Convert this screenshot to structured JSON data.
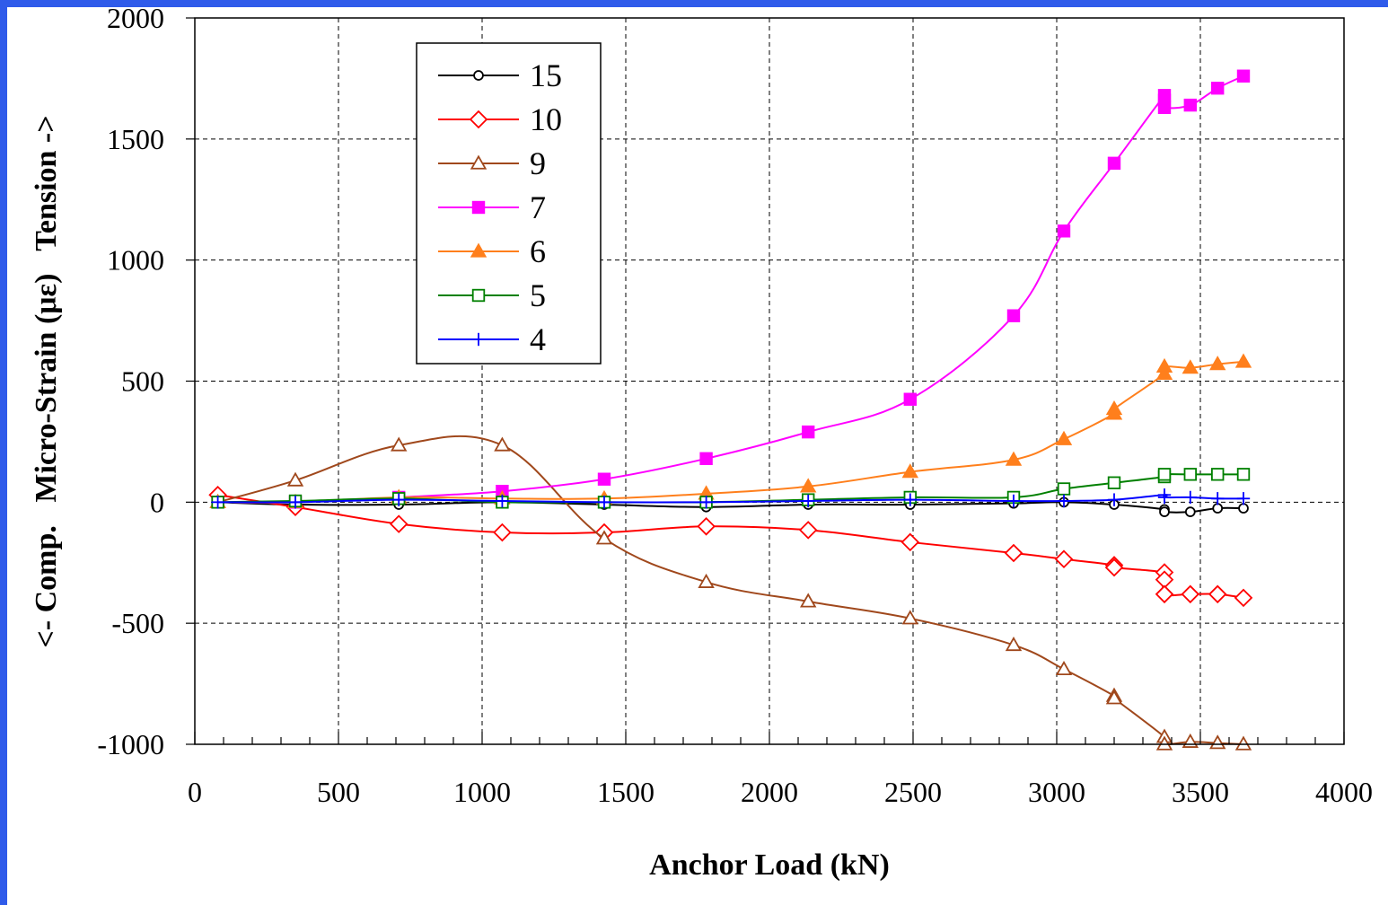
{
  "frame": {
    "color": "#2f5bea"
  },
  "chart_data": {
    "type": "line",
    "xlabel": "Anchor Load (kN)",
    "ylabel": "<- Comp.   Micro-Strain (με)   Tension ->",
    "xlim": [
      0,
      4000
    ],
    "ylim": [
      -1000,
      2000
    ],
    "xticks": [
      0,
      500,
      1000,
      1500,
      2000,
      2500,
      3000,
      3500,
      4000
    ],
    "yticks": [
      -1000,
      -500,
      0,
      500,
      1000,
      1500,
      2000
    ],
    "grid": true,
    "legend_position": "top-left-center",
    "series": [
      {
        "name": "15",
        "color": "#000000",
        "marker": "circle-open",
        "x": [
          80,
          350,
          710,
          1070,
          1425,
          1780,
          2135,
          2490,
          2850,
          3025,
          3200,
          3375,
          3375,
          3465,
          3560,
          3650
        ],
        "y": [
          0,
          -10,
          -10,
          0,
          -10,
          -20,
          -10,
          -10,
          -5,
          0,
          -10,
          -30,
          -40,
          -40,
          -25,
          -25
        ]
      },
      {
        "name": "10",
        "color": "#ff0000",
        "marker": "diamond-open",
        "x": [
          80,
          350,
          710,
          1070,
          1425,
          1780,
          2135,
          2490,
          2850,
          3025,
          3200,
          3200,
          3375,
          3375,
          3375,
          3465,
          3560,
          3650
        ],
        "y": [
          30,
          -20,
          -90,
          -125,
          -125,
          -100,
          -115,
          -165,
          -210,
          -235,
          -260,
          -270,
          -290,
          -320,
          -380,
          -380,
          -380,
          -395
        ]
      },
      {
        "name": "9",
        "color": "#a0481c",
        "marker": "triangle-open",
        "x": [
          80,
          350,
          710,
          1070,
          1425,
          1780,
          2135,
          2490,
          2850,
          3025,
          3200,
          3200,
          3375,
          3375,
          3465,
          3560,
          3650
        ],
        "y": [
          0,
          90,
          235,
          235,
          -150,
          -330,
          -410,
          -480,
          -590,
          -690,
          -800,
          -810,
          -970,
          -1000,
          -990,
          -995,
          -1000
        ]
      },
      {
        "name": "7",
        "color": "#ff00ff",
        "marker": "square-filled",
        "x": [
          80,
          350,
          710,
          1070,
          1425,
          1780,
          2135,
          2490,
          2850,
          3025,
          3200,
          3375,
          3375,
          3375,
          3465,
          3560,
          3650
        ],
        "y": [
          0,
          0,
          20,
          45,
          95,
          180,
          290,
          425,
          770,
          1120,
          1400,
          1680,
          1660,
          1630,
          1640,
          1710,
          1760
        ]
      },
      {
        "name": "6",
        "color": "#ff7f1c",
        "marker": "triangle-filled",
        "x": [
          80,
          350,
          710,
          1070,
          1425,
          1780,
          2135,
          2490,
          2850,
          3025,
          3200,
          3200,
          3375,
          3375,
          3465,
          3560,
          3650
        ],
        "y": [
          0,
          0,
          20,
          15,
          15,
          35,
          65,
          125,
          175,
          260,
          365,
          385,
          530,
          560,
          555,
          570,
          580
        ]
      },
      {
        "name": "5",
        "color": "#008000",
        "marker": "square-open",
        "x": [
          80,
          350,
          710,
          1070,
          1425,
          1780,
          2135,
          2490,
          2850,
          3025,
          3200,
          3375,
          3375,
          3465,
          3560,
          3650
        ],
        "y": [
          0,
          5,
          15,
          0,
          0,
          0,
          10,
          20,
          20,
          55,
          80,
          105,
          115,
          115,
          115,
          115
        ]
      },
      {
        "name": "4",
        "color": "#0000ff",
        "marker": "plus",
        "x": [
          80,
          350,
          710,
          1070,
          1425,
          1780,
          2135,
          2490,
          2850,
          3025,
          3200,
          3375,
          3375,
          3465,
          3560,
          3650
        ],
        "y": [
          0,
          0,
          10,
          5,
          0,
          0,
          5,
          10,
          5,
          5,
          10,
          30,
          20,
          20,
          15,
          15
        ]
      }
    ]
  }
}
